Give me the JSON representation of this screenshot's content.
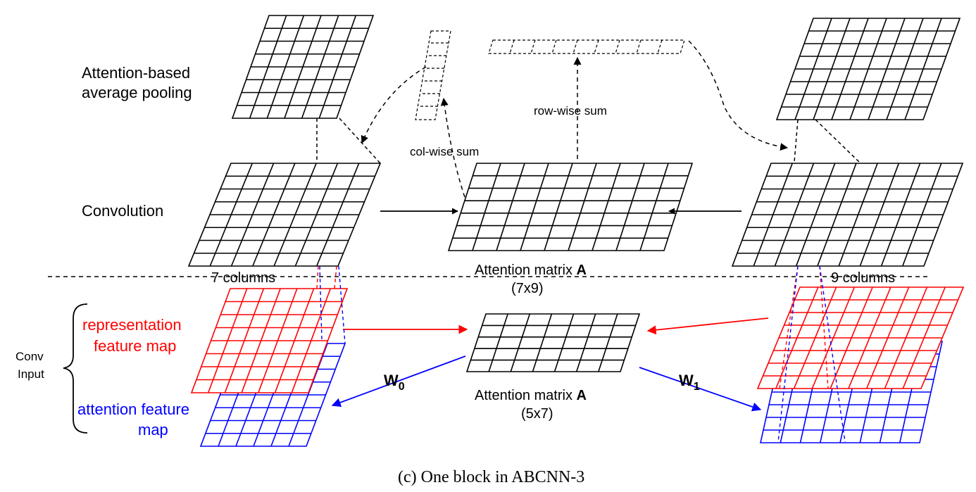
{
  "labels": {
    "pooling_line1": "Attention-based",
    "pooling_line2": "average pooling",
    "convolution": "Convolution",
    "row_wise_sum": "row-wise sum",
    "col_wise_sum": "col-wise sum",
    "left_columns": "7 columns",
    "right_columns": "9 columns",
    "attention_top_prefix": "Attention matrix ",
    "attention_top_bold": "A",
    "attention_top_dims": "(7x9)",
    "conv_input_line1": "Conv",
    "conv_input_line2": "Input",
    "rep_line1": "representation",
    "rep_line2": "feature map",
    "att_line1": "attention  feature",
    "att_line2": "map",
    "w0_main": "W",
    "w0_sub": "0",
    "w1_main": "W",
    "w1_sub": "1",
    "attention_bottom_prefix": "Attention matrix ",
    "attention_bottom_bold": "A",
    "attention_bottom_dims": "(5x7)",
    "caption": "(c) One block in ABCNN-3"
  },
  "colors": {
    "black": "#000000",
    "red": "#ff0000",
    "blue": "#0000ff"
  }
}
